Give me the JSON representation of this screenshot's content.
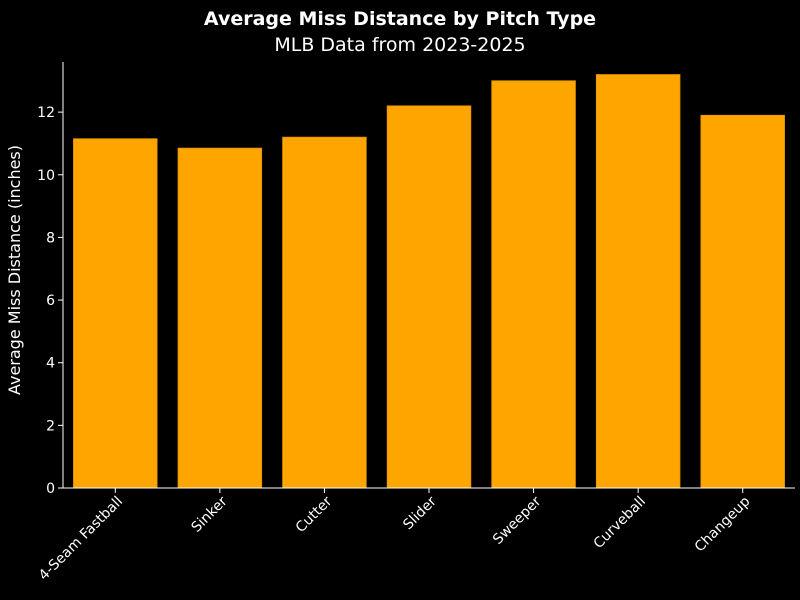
{
  "chart_data": {
    "type": "bar",
    "title": "Average Miss Distance by Pitch Type",
    "subtitle": "MLB Data from 2023-2025",
    "xlabel": "",
    "ylabel": "Average Miss Distance (inches)",
    "categories": [
      "4-Seam Fastball",
      "Sinker",
      "Cutter",
      "Slider",
      "Sweeper",
      "Curveball",
      "Changeup"
    ],
    "values": [
      11.15,
      10.85,
      11.2,
      12.2,
      13.0,
      13.2,
      11.9
    ],
    "ylim": [
      0,
      13.6
    ],
    "yticks": [
      0,
      2,
      4,
      6,
      8,
      10,
      12
    ],
    "grid": false,
    "legend": "none",
    "bar_color": "#FFA500",
    "background": "#000000"
  }
}
